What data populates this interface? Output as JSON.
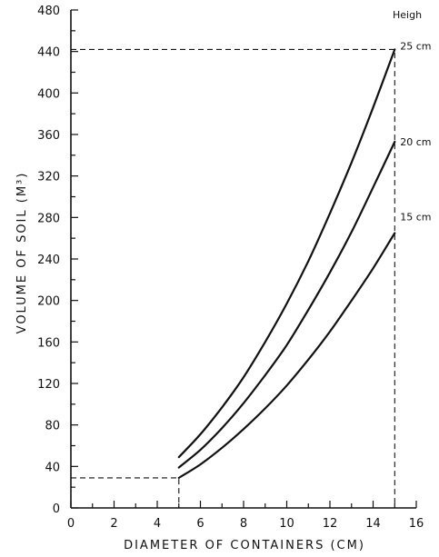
{
  "chart_data": {
    "type": "line",
    "title": "",
    "xlabel": "DIAMETER OF CONTAINERS (CM)",
    "ylabel": "VOLUME OF SOIL (M³)",
    "xlim": [
      0,
      16
    ],
    "ylim": [
      0,
      480
    ],
    "x_ticks": [
      0,
      2,
      4,
      6,
      8,
      10,
      12,
      14,
      16
    ],
    "y_ticks": [
      0,
      40,
      80,
      120,
      160,
      200,
      240,
      280,
      320,
      360,
      400,
      440,
      480
    ],
    "legend_title": "Heigh",
    "series": [
      {
        "name": "25 cm",
        "x": [
          5,
          6,
          7,
          8,
          9,
          10,
          11,
          12,
          13,
          14,
          15
        ],
        "y": [
          49,
          71,
          97,
          126,
          160,
          197,
          238,
          284,
          333,
          386,
          442
        ]
      },
      {
        "name": "20 cm",
        "x": [
          5,
          6,
          7,
          8,
          9,
          10,
          11,
          12,
          13,
          14,
          15
        ],
        "y": [
          39,
          56,
          77,
          101,
          128,
          157,
          191,
          227,
          266,
          309,
          353
        ]
      },
      {
        "name": "15 cm",
        "x": [
          5,
          6,
          7,
          8,
          9,
          10,
          11,
          12,
          13,
          14,
          15
        ],
        "y": [
          29,
          42,
          58,
          76,
          96,
          118,
          143,
          170,
          200,
          231,
          265
        ]
      }
    ],
    "reference_lines": [
      {
        "points": [
          [
            0,
            442
          ],
          [
            15,
            442
          ],
          [
            15,
            0
          ]
        ]
      },
      {
        "points": [
          [
            0,
            29
          ],
          [
            5,
            29
          ],
          [
            5,
            0
          ]
        ]
      }
    ],
    "grid": false,
    "legend": "right, at line ends"
  }
}
